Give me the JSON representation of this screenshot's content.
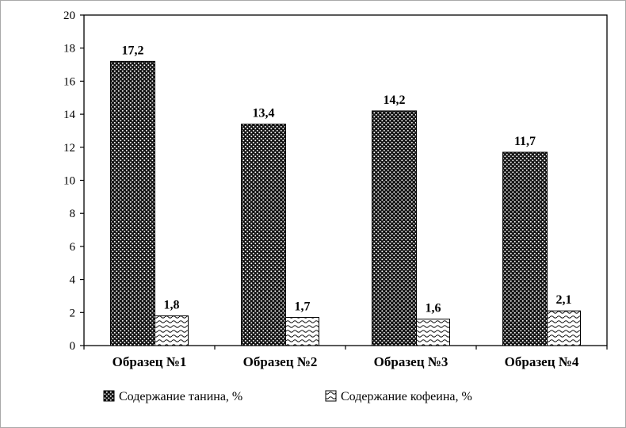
{
  "figure": {
    "background": "#ffffff",
    "border_color": "#a9a9a9",
    "bar_edge_color": "#000000",
    "axis_color": "#000000"
  },
  "chart_data": {
    "type": "bar",
    "title": "",
    "xlabel": "",
    "ylabel": "",
    "categories": [
      "Образец №1",
      "Образец №2",
      "Образец №3",
      "Образец №4"
    ],
    "series": [
      {
        "name": "Содержание танина, %",
        "values": [
          17.2,
          13.4,
          14.2,
          11.7
        ],
        "labels": [
          "17,2",
          "13,4",
          "14,2",
          "11,7"
        ],
        "pattern": "dots-on-black"
      },
      {
        "name": "Содержание кофеина, %",
        "values": [
          1.8,
          1.7,
          1.6,
          2.1
        ],
        "labels": [
          "1,8",
          "1,7",
          "1,6",
          "2,1"
        ],
        "pattern": "waves-on-white"
      }
    ],
    "ylim": [
      0,
      20
    ],
    "ytick_step": 2,
    "yticks": [
      0,
      2,
      4,
      6,
      8,
      10,
      12,
      14,
      16,
      18,
      20
    ],
    "grid": false,
    "legend_position": "bottom"
  }
}
